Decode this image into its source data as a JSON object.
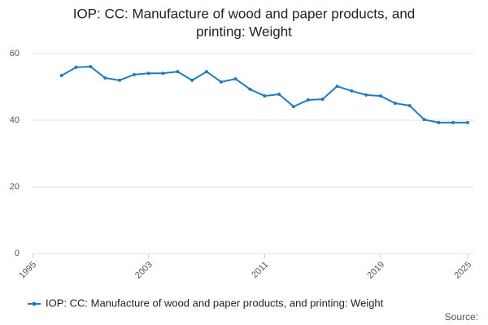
{
  "chart_data": {
    "type": "line",
    "title_lines": [
      "IOP: CC: Manufacture of wood and paper products, and",
      "printing: Weight"
    ],
    "x": [
      1997,
      1998,
      1999,
      2000,
      2001,
      2002,
      2003,
      2004,
      2005,
      2006,
      2007,
      2008,
      2009,
      2010,
      2011,
      2012,
      2013,
      2014,
      2015,
      2016,
      2017,
      2018,
      2019,
      2020,
      2021,
      2022,
      2023,
      2024,
      2025
    ],
    "series": [
      {
        "name": "IOP: CC: Manufacture of wood and paper products, and printing: Weight",
        "color": "#1f7bbf",
        "values": [
          53.4,
          55.9,
          56.1,
          52.7,
          52.0,
          53.7,
          54.1,
          54.1,
          54.6,
          52.0,
          54.6,
          51.5,
          52.4,
          49.3,
          47.3,
          47.8,
          44.1,
          46.1,
          46.3,
          50.2,
          48.8,
          47.6,
          47.3,
          45.1,
          44.4,
          40.2,
          39.3,
          39.3,
          39.3
        ]
      }
    ],
    "xlim": [
      1995,
      2025
    ],
    "xticks": [
      1995,
      2003,
      2011,
      2019,
      2025
    ],
    "ylim": [
      0,
      60
    ],
    "yticks": [
      0,
      20,
      40,
      60
    ],
    "grid": true,
    "source": "Source:"
  }
}
